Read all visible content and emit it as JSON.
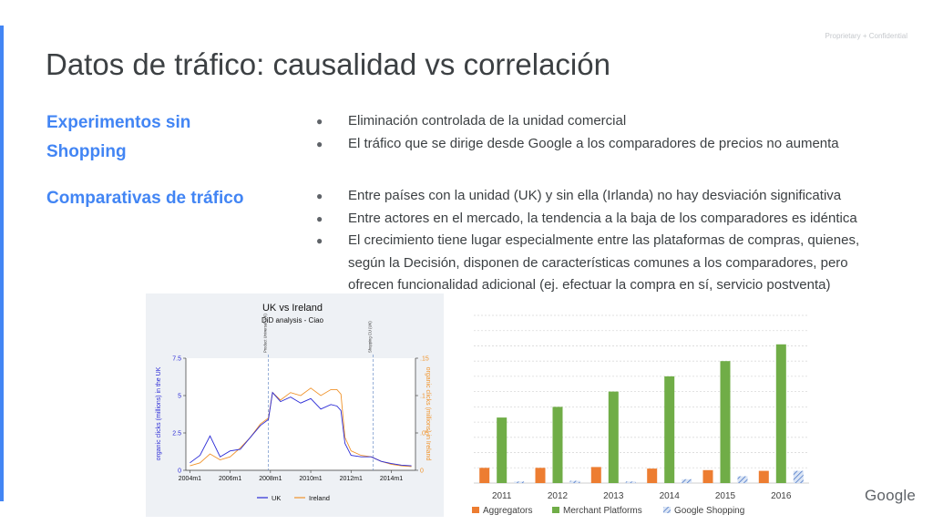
{
  "slide": {
    "confidential": "Proprietary + Confidential",
    "title": "Datos de tráfico: causalidad vs correlación",
    "logo_text": "Google",
    "colors": {
      "accent": "#4285f4",
      "title": "#3c4043"
    }
  },
  "sections": [
    {
      "label_lines": [
        "Experimentos sin",
        "Shopping"
      ],
      "bullets": [
        "Eliminación controlada de la unidad comercial",
        "El tráfico que se dirige desde Google a los comparadores de precios no aumenta"
      ]
    },
    {
      "label": "Comparativas de tráfico",
      "bullets": [
        "Entre países con la unidad (UK) y sin ella (Irlanda) no hay desviación significativa",
        "Entre actores en el mercado, la tendencia a la baja de los comparadores es idéntica",
        "El crecimiento tiene lugar especialmente entre las plataformas de compras, quienes, según la Decisión, disponen de características comunes a los comparadores, pero ofrecen funcionalidad adicional (ej. efectuar la compra en sí, servicio postventa)"
      ]
    }
  ],
  "chart_data": [
    {
      "type": "line",
      "title": "UK vs Ireland",
      "subtitle": "DiD analysis - Ciao",
      "xlabel": "",
      "ylabel_left": "organic clicks (millions) in the UK",
      "ylabel_right": "organic clicks (millions) in Ireland",
      "x_ticks": [
        "2004m1",
        "2006m1",
        "2008m1",
        "2010m1",
        "2012m1",
        "2014m1"
      ],
      "y_left_ticks": [
        "0",
        "2.5",
        "5",
        "7.5"
      ],
      "y_right_ticks": [
        "0",
        ".05",
        ".1",
        ".15"
      ],
      "y_left_lim": [
        0,
        7.5
      ],
      "y_right_lim": [
        0,
        0.15
      ],
      "x_lim": [
        2003.8,
        2015.2
      ],
      "vlines": [
        {
          "x": 2007.9,
          "label": "Product Universal (UK)"
        },
        {
          "x": 2013.1,
          "label": "Shopping CU (UK)"
        }
      ],
      "series": [
        {
          "name": "UK",
          "color": "#2b2bd6",
          "axis": "left",
          "x": [
            2004.0,
            2004.5,
            2005.0,
            2005.5,
            2006.0,
            2006.5,
            2007.0,
            2007.5,
            2007.9,
            2008.1,
            2008.5,
            2009.0,
            2009.5,
            2010.0,
            2010.5,
            2011.0,
            2011.3,
            2011.5,
            2011.7,
            2012.0,
            2012.5,
            2013.0,
            2013.5,
            2014.0,
            2014.5,
            2015.0
          ],
          "y": [
            0.5,
            1.0,
            2.3,
            0.9,
            1.3,
            1.4,
            2.2,
            3.0,
            3.4,
            5.2,
            4.6,
            4.9,
            4.5,
            4.8,
            4.1,
            4.4,
            4.3,
            4.0,
            1.8,
            1.0,
            0.9,
            0.9,
            0.6,
            0.45,
            0.35,
            0.3
          ]
        },
        {
          "name": "Ireland",
          "color": "#f0932b",
          "axis": "right",
          "x": [
            2004.0,
            2004.5,
            2005.0,
            2005.5,
            2006.0,
            2006.5,
            2007.0,
            2007.5,
            2007.9,
            2008.1,
            2008.5,
            2009.0,
            2009.5,
            2010.0,
            2010.5,
            2011.0,
            2011.3,
            2011.5,
            2011.7,
            2012.0,
            2012.5,
            2013.0,
            2013.5,
            2014.0,
            2014.5,
            2015.0
          ],
          "y": [
            0.006,
            0.01,
            0.022,
            0.014,
            0.018,
            0.03,
            0.044,
            0.062,
            0.07,
            0.104,
            0.094,
            0.104,
            0.1,
            0.11,
            0.1,
            0.108,
            0.108,
            0.102,
            0.044,
            0.026,
            0.02,
            0.018,
            0.012,
            0.008,
            0.006,
            0.005
          ]
        }
      ],
      "legend": "bottom"
    },
    {
      "type": "bar",
      "categories": [
        "2011",
        "2012",
        "2013",
        "2014",
        "2015",
        "2016"
      ],
      "ylim": [
        0,
        11
      ],
      "series": [
        {
          "name": "Aggregators",
          "color": "#ed7d31",
          "pattern": "solid",
          "values": [
            1.0,
            1.0,
            1.05,
            0.95,
            0.85,
            0.8
          ]
        },
        {
          "name": "Merchant Platforms",
          "color": "#70ad47",
          "pattern": "solid",
          "values": [
            4.3,
            5.0,
            6.0,
            7.0,
            8.0,
            9.1
          ]
        },
        {
          "name": "Google Shopping",
          "color": "#4472c4",
          "pattern": "hatched",
          "values": [
            0.1,
            0.15,
            0.1,
            0.25,
            0.45,
            0.8
          ]
        }
      ],
      "grid": true,
      "legend": "bottom"
    }
  ]
}
